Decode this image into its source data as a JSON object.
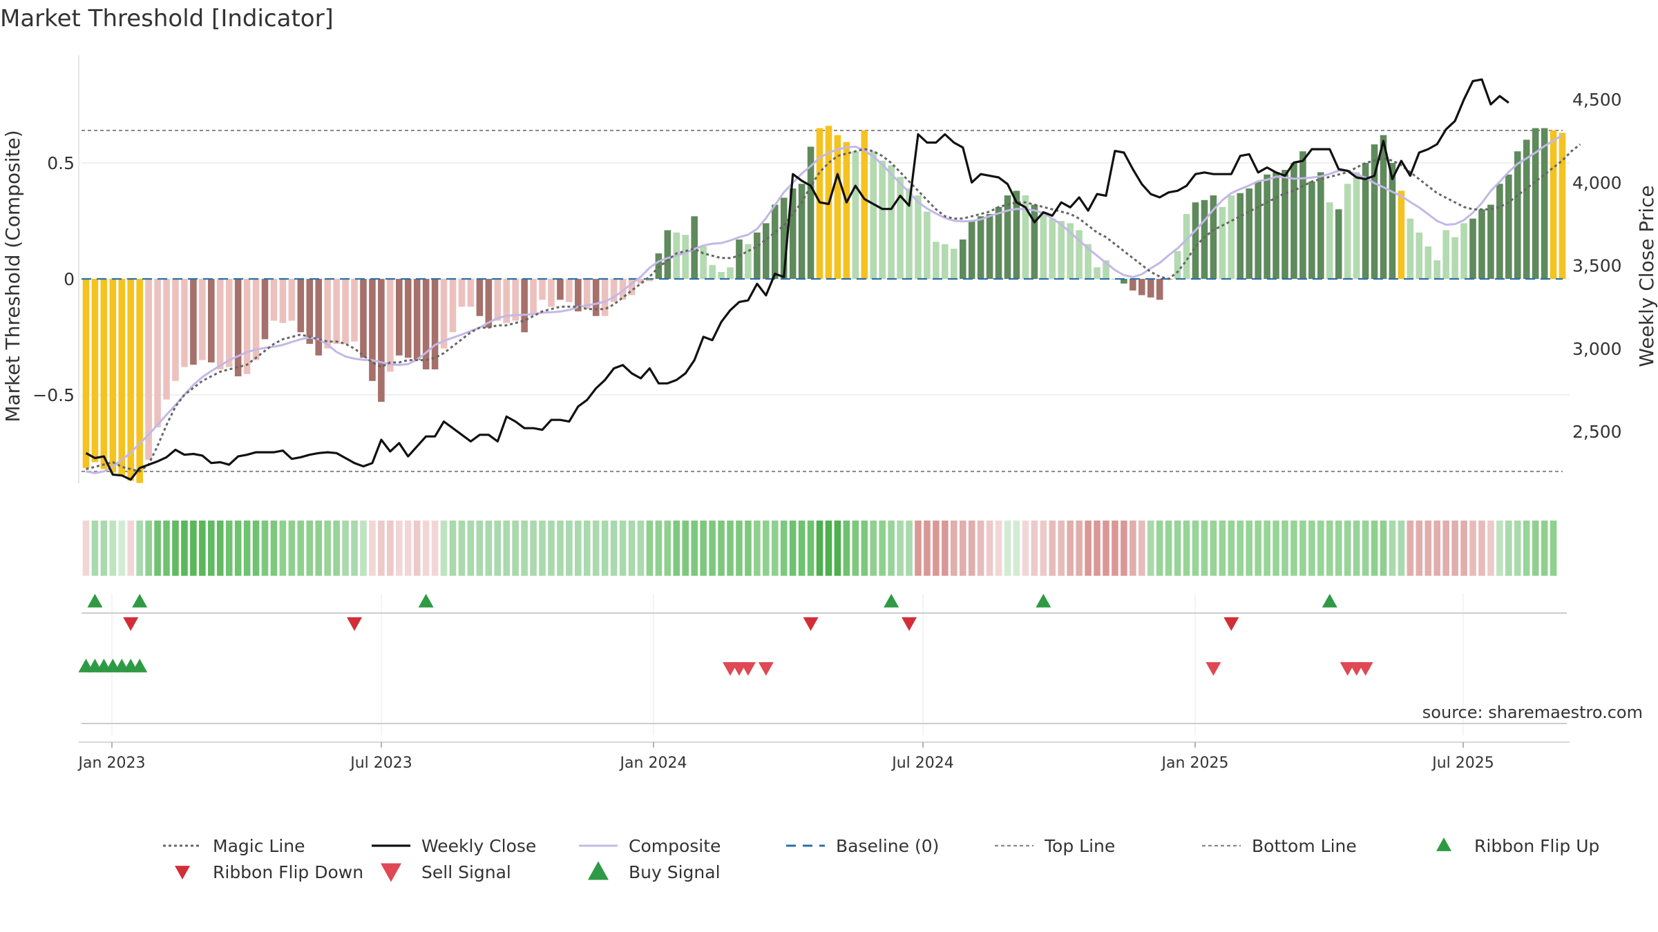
{
  "chart_data": {
    "type": "bar",
    "title": "Market Threshold [Indicator]",
    "ylabel": "Market Threshold (Composite)",
    "y2label": "Weekly Close Price",
    "source": "source: sharemaestro.com",
    "ylim": [
      -0.95,
      0.97
    ],
    "y2lim": [
      2000,
      4850
    ],
    "y_ticks": [
      0.5,
      0,
      -0.5
    ],
    "y_tick_labels": [
      "0.5",
      "0",
      "−0.5"
    ],
    "y2_ticks": [
      4500,
      4000,
      3500,
      3000,
      2500
    ],
    "y2_tick_labels": [
      "4,500",
      "4,000",
      "3,500",
      "3,000",
      "2,500"
    ],
    "x_ticks": [
      "Jan 2023",
      "Jul 2023",
      "Jan 2024",
      "Jul 2024",
      "Jan 2025",
      "Jul 2025"
    ],
    "top_line": 0.64,
    "bottom_line": -0.83,
    "composite": [
      -0.815,
      -0.79,
      -0.82,
      -0.835,
      -0.85,
      -0.87,
      -0.88,
      -0.78,
      -0.64,
      -0.52,
      -0.44,
      -0.38,
      -0.37,
      -0.35,
      -0.36,
      -0.39,
      -0.38,
      -0.42,
      -0.41,
      -0.35,
      -0.26,
      -0.18,
      -0.19,
      -0.18,
      -0.23,
      -0.28,
      -0.33,
      -0.3,
      -0.28,
      -0.28,
      -0.27,
      -0.34,
      -0.44,
      -0.53,
      -0.4,
      -0.33,
      -0.34,
      -0.35,
      -0.39,
      -0.39,
      -0.3,
      -0.23,
      -0.12,
      -0.12,
      -0.16,
      -0.21,
      -0.18,
      -0.19,
      -0.18,
      -0.23,
      -0.15,
      -0.09,
      -0.12,
      -0.09,
      -0.1,
      -0.14,
      -0.13,
      -0.16,
      -0.16,
      -0.1,
      -0.09,
      -0.07,
      -0.02,
      -0.01,
      0.11,
      0.21,
      0.2,
      0.19,
      0.27,
      0.14,
      0.06,
      0.03,
      0.05,
      0.17,
      0.15,
      0.2,
      0.24,
      0.32,
      0.35,
      0.39,
      0.41,
      0.57,
      0.65,
      0.66,
      0.62,
      0.59,
      0.55,
      0.64,
      0.55,
      0.51,
      0.49,
      0.44,
      0.39,
      0.36,
      0.29,
      0.16,
      0.15,
      0.13,
      0.17,
      0.25,
      0.27,
      0.28,
      0.31,
      0.36,
      0.38,
      0.36,
      0.32,
      0.28,
      0.26,
      0.25,
      0.24,
      0.21,
      0.15,
      0.05,
      0.08,
      0.0,
      -0.02,
      -0.05,
      -0.07,
      -0.08,
      -0.09,
      0.0,
      0.12,
      0.28,
      0.33,
      0.34,
      0.36,
      0.31,
      0.36,
      0.37,
      0.39,
      0.42,
      0.45,
      0.46,
      0.47,
      0.5,
      0.55,
      0.42,
      0.46,
      0.33,
      0.3,
      0.41,
      0.46,
      0.5,
      0.58,
      0.62,
      0.5,
      0.38,
      0.26,
      0.2,
      0.14,
      0.08,
      0.21,
      0.18,
      0.24,
      0.26,
      0.3,
      0.32,
      0.41,
      0.45,
      0.55,
      0.6,
      0.65,
      0.65,
      0.64,
      0.63
    ],
    "bar_classes": [
      "y",
      "y",
      "y",
      "y",
      "y",
      "y",
      "y",
      "lr",
      "lr",
      "lr",
      "lr",
      "lr",
      "dr",
      "lr",
      "dr",
      "lr",
      "lr",
      "dr",
      "lr",
      "lr",
      "dr",
      "lr",
      "lr",
      "lr",
      "dr",
      "dr",
      "dr",
      "lr",
      "lr",
      "lr",
      "lr",
      "dr",
      "dr",
      "dr",
      "lr",
      "dr",
      "dr",
      "dr",
      "dr",
      "dr",
      "lr",
      "lr",
      "lr",
      "lr",
      "dr",
      "dr",
      "lr",
      "lr",
      "lr",
      "dr",
      "lr",
      "lr",
      "lr",
      "dr",
      "lr",
      "dr",
      "lr",
      "dr",
      "lr",
      "lr",
      "lr",
      "lr",
      "lr",
      "lr",
      "dg",
      "dg",
      "lg",
      "lg",
      "dg",
      "lg",
      "lg",
      "lg",
      "lg",
      "dg",
      "lg",
      "dg",
      "dg",
      "dg",
      "dg",
      "dg",
      "dg",
      "dg",
      "y",
      "y",
      "y",
      "y",
      "lg",
      "y",
      "lg",
      "lg",
      "lg",
      "lg",
      "lg",
      "lg",
      "lg",
      "lg",
      "lg",
      "lg",
      "dg",
      "dg",
      "dg",
      "dg",
      "dg",
      "dg",
      "dg",
      "lg",
      "dg",
      "lg",
      "lg",
      "lg",
      "lg",
      "lg",
      "lg",
      "lg",
      "lg",
      "lg",
      "dg",
      "dr",
      "dr",
      "dr",
      "dr",
      "dr",
      "lg",
      "lg",
      "dg",
      "dg",
      "dg",
      "lg",
      "lg",
      "dg",
      "dg",
      "dg",
      "dg",
      "dg",
      "dg",
      "dg",
      "dg",
      "dg",
      "dg",
      "lg",
      "dg",
      "lg",
      "lg",
      "dg",
      "dg",
      "dg",
      "dg",
      "y",
      "lg",
      "lg",
      "lg",
      "lg",
      "lg",
      "lg",
      "lg",
      "dg",
      "dg",
      "dg",
      "dg",
      "dg",
      "dg",
      "dg",
      "dg",
      "dg",
      "y",
      "y",
      "y",
      "y"
    ],
    "magic_line": [
      -0.82,
      -0.81,
      -0.8,
      -0.79,
      -0.81,
      -0.82,
      -0.83,
      -0.8,
      -0.72,
      -0.63,
      -0.55,
      -0.5,
      -0.47,
      -0.44,
      -0.42,
      -0.4,
      -0.39,
      -0.38,
      -0.37,
      -0.34,
      -0.31,
      -0.28,
      -0.26,
      -0.25,
      -0.24,
      -0.25,
      -0.26,
      -0.27,
      -0.27,
      -0.28,
      -0.3,
      -0.33,
      -0.36,
      -0.38,
      -0.36,
      -0.36,
      -0.35,
      -0.35,
      -0.35,
      -0.34,
      -0.32,
      -0.29,
      -0.26,
      -0.23,
      -0.21,
      -0.21,
      -0.2,
      -0.2,
      -0.19,
      -0.18,
      -0.16,
      -0.14,
      -0.13,
      -0.12,
      -0.12,
      -0.12,
      -0.13,
      -0.13,
      -0.13,
      -0.11,
      -0.08,
      -0.05,
      -0.02,
      0.01,
      0.05,
      0.08,
      0.11,
      0.12,
      0.13,
      0.11,
      0.1,
      0.09,
      0.09,
      0.1,
      0.12,
      0.14,
      0.17,
      0.2,
      0.23,
      0.28,
      0.33,
      0.4,
      0.46,
      0.5,
      0.53,
      0.54,
      0.55,
      0.56,
      0.55,
      0.53,
      0.5,
      0.46,
      0.42,
      0.38,
      0.34,
      0.3,
      0.27,
      0.26,
      0.26,
      0.27,
      0.28,
      0.29,
      0.31,
      0.32,
      0.33,
      0.33,
      0.32,
      0.31,
      0.3,
      0.29,
      0.28,
      0.26,
      0.23,
      0.2,
      0.18,
      0.15,
      0.12,
      0.09,
      0.06,
      0.03,
      0.01,
      0.0,
      0.03,
      0.08,
      0.14,
      0.18,
      0.21,
      0.23,
      0.25,
      0.27,
      0.29,
      0.31,
      0.33,
      0.35,
      0.37,
      0.38,
      0.4,
      0.42,
      0.43,
      0.44,
      0.45,
      0.46,
      0.48,
      0.5,
      0.51,
      0.52,
      0.51,
      0.49,
      0.46,
      0.43,
      0.4,
      0.37,
      0.35,
      0.33,
      0.31,
      0.3,
      0.3,
      0.3,
      0.31,
      0.33,
      0.36,
      0.39,
      0.42,
      0.45,
      0.48,
      0.51,
      0.55,
      0.58
    ],
    "weekly_close": [
      2370,
      2340,
      2350,
      2240,
      2235,
      2210,
      2280,
      2300,
      2320,
      2345,
      2390,
      2360,
      2365,
      2355,
      2310,
      2315,
      2300,
      2350,
      2360,
      2375,
      2375,
      2375,
      2385,
      2335,
      2345,
      2360,
      2370,
      2375,
      2370,
      2340,
      2310,
      2290,
      2310,
      2450,
      2380,
      2430,
      2350,
      2410,
      2470,
      2470,
      2560,
      2520,
      2480,
      2440,
      2480,
      2480,
      2440,
      2590,
      2560,
      2520,
      2520,
      2510,
      2570,
      2570,
      2560,
      2650,
      2690,
      2760,
      2810,
      2880,
      2900,
      2850,
      2820,
      2880,
      2790,
      2790,
      2810,
      2850,
      2930,
      3070,
      3050,
      3160,
      3230,
      3280,
      3290,
      3390,
      3320,
      3450,
      3430,
      4050,
      4010,
      3980,
      3880,
      3870,
      4050,
      3880,
      3980,
      3900,
      3870,
      3840,
      3840,
      3920,
      3860,
      4290,
      4240,
      4240,
      4290,
      4240,
      4210,
      4000,
      4050,
      4040,
      4030,
      3990,
      3880,
      3850,
      3760,
      3820,
      3800,
      3880,
      3850,
      3910,
      3830,
      3930,
      3920,
      4190,
      4180,
      4080,
      3990,
      3930,
      3910,
      3940,
      3950,
      3980,
      4050,
      4060,
      4050,
      4050,
      4050,
      4160,
      4170,
      4060,
      4090,
      4060,
      4040,
      4120,
      4130,
      4200,
      4200,
      4200,
      4080,
      4070,
      4030,
      4020,
      4040,
      4250,
      4020,
      4130,
      4040,
      4180,
      4200,
      4230,
      4320,
      4370,
      4500,
      4610,
      4620,
      4470,
      4520,
      4480
    ],
    "heat_strip": [
      "#f2d6d5",
      "#a9d9ac",
      "#a9d9ac",
      "#bde3bf",
      "#d2ecd3",
      "#f2d6d5",
      "#a9d9ac",
      "#8fd08f",
      "#6fc26f",
      "#6fc26f",
      "#62bb62",
      "#5ab75a",
      "#5ab75a",
      "#5ab75a",
      "#62bb62",
      "#62bb62",
      "#6fc26f",
      "#6fc26f",
      "#6fc26f",
      "#6fc26f",
      "#7ec87e",
      "#7ec87e",
      "#8fd08f",
      "#8fd08f",
      "#8fd08f",
      "#8fd08f",
      "#8fd08f",
      "#97d497",
      "#97d497",
      "#a9d9ac",
      "#a9d9ac",
      "#bde3bf",
      "#f2d6d5",
      "#eccaca",
      "#eccaca",
      "#f2d6d5",
      "#f2d6d5",
      "#eccaca",
      "#f2d6d5",
      "#f2d6d5",
      "#bde3bf",
      "#a9d9ac",
      "#a9d9ac",
      "#a9d9ac",
      "#a9d9ac",
      "#a9d9ac",
      "#a9d9ac",
      "#a9d9ac",
      "#a9d9ac",
      "#a9d9ac",
      "#a9d9ac",
      "#a9d9ac",
      "#a9d9ac",
      "#a9d9ac",
      "#a9d9ac",
      "#a9d9ac",
      "#a9d9ac",
      "#a9d9ac",
      "#a9d9ac",
      "#a9d9ac",
      "#a9d9ac",
      "#a9d9ac",
      "#a9d9ac",
      "#8fd08f",
      "#8fd08f",
      "#8fd08f",
      "#7ec87e",
      "#7ec87e",
      "#7ec87e",
      "#7ec87e",
      "#7ec87e",
      "#7ec87e",
      "#7ec87e",
      "#7ec87e",
      "#7ec87e",
      "#8fd08f",
      "#8fd08f",
      "#8fd08f",
      "#7ec87e",
      "#6fc26f",
      "#6fc26f",
      "#6fc26f",
      "#4eb04e",
      "#4eb04e",
      "#4eb04e",
      "#6fc26f",
      "#7ec87e",
      "#7ec87e",
      "#8fd08f",
      "#8fd08f",
      "#97d497",
      "#a9d9ac",
      "#a9d9ac",
      "#d99896",
      "#d99896",
      "#d99896",
      "#d99896",
      "#e0aeac",
      "#e0aeac",
      "#e0aeac",
      "#e6bcbb",
      "#eccaca",
      "#f2d6d5",
      "#d2ecd3",
      "#d2ecd3",
      "#f2d6d5",
      "#eccaca",
      "#eccaca",
      "#e6bcbb",
      "#e6bcbb",
      "#e0aeac",
      "#e0aeac",
      "#d99896",
      "#d99896",
      "#d99896",
      "#d99896",
      "#d99896",
      "#e0aeac",
      "#e6bcbb",
      "#a9d9ac",
      "#97d497",
      "#97d497",
      "#97d497",
      "#97d497",
      "#97d497",
      "#97d497",
      "#97d497",
      "#97d497",
      "#97d497",
      "#97d497",
      "#97d497",
      "#97d497",
      "#97d497",
      "#97d497",
      "#97d497",
      "#97d497",
      "#97d497",
      "#97d497",
      "#97d497",
      "#97d497",
      "#97d497",
      "#97d497",
      "#97d497",
      "#97d497",
      "#8fd08f",
      "#8fd08f",
      "#a9d9ac",
      "#a9d9ac",
      "#e0aeac",
      "#e0aeac",
      "#e0aeac",
      "#e0aeac",
      "#e0aeac",
      "#e0aeac",
      "#e0aeac",
      "#e6bcbb",
      "#e6bcbb",
      "#eccaca",
      "#bde3bf",
      "#a9d9ac",
      "#a9d9ac",
      "#97d497",
      "#8fd08f",
      "#8fd08f",
      "#8fd08f"
    ],
    "ribbon_flip_up": [
      1,
      6,
      38,
      90,
      107,
      139
    ],
    "ribbon_flip_down": [
      5,
      30,
      81,
      92,
      128
    ],
    "buy_signal": [
      0,
      1,
      2,
      3,
      4,
      5,
      6
    ],
    "sell_signal": [
      72,
      73,
      74,
      76,
      126,
      141,
      142,
      143
    ]
  },
  "colors": {
    "yellow": "#f5c220",
    "dark_green": "#5f8a5c",
    "light_green": "#b3dab0",
    "dark_red": "#a6706b",
    "light_red": "#ecc1bd",
    "composite": "#c3b8e6",
    "weekly_close": "#111111",
    "magic_line": "#666666",
    "baseline": "#2b6fa6",
    "flip_up": "#2e9a44",
    "flip_down": "#d22e36",
    "sell": "#e04854",
    "buy": "#2f9a45"
  },
  "legend": [
    {
      "label": "Magic Line",
      "marker": "dotted-dark"
    },
    {
      "label": "Weekly Close",
      "marker": "solid-black"
    },
    {
      "label": "Composite",
      "marker": "solid-lavender"
    },
    {
      "label": "Baseline (0)",
      "marker": "dashed-blue"
    },
    {
      "label": "Top Line",
      "marker": "dotted-grey"
    },
    {
      "label": "Bottom Line",
      "marker": "dotted-grey"
    },
    {
      "label": "Ribbon Flip Up",
      "marker": "triangle-up-green"
    },
    {
      "label": "Ribbon Flip Down",
      "marker": "triangle-down-red"
    },
    {
      "label": "Sell Signal",
      "marker": "triangle-down-lightred"
    },
    {
      "label": "Buy Signal",
      "marker": "triangle-up-green"
    }
  ]
}
